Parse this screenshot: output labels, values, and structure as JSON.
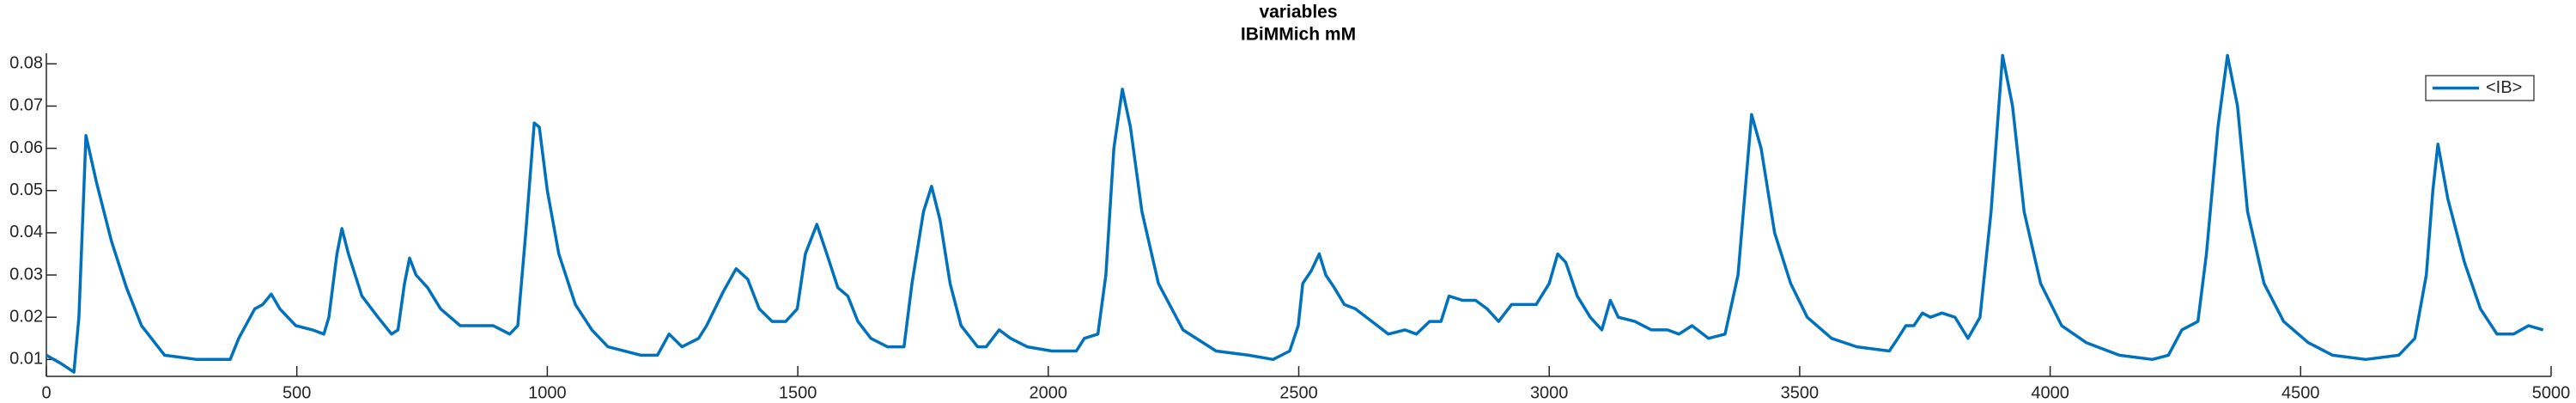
{
  "chart_data": {
    "type": "line",
    "title": "variables",
    "subtitle": "IBiMMich mM",
    "x": [
      0,
      30,
      55,
      65,
      79,
      100,
      130,
      160,
      190,
      236,
      300,
      367,
      384,
      416,
      432,
      449,
      466,
      498,
      531,
      554,
      564,
      580,
      590,
      603,
      630,
      662,
      689,
      702,
      715,
      725,
      738,
      761,
      787,
      826,
      892,
      925,
      941,
      957,
      974,
      984,
      1000,
      1023,
      1056,
      1089,
      1121,
      1187,
      1220,
      1243,
      1269,
      1302,
      1318,
      1351,
      1377,
      1400,
      1423,
      1449,
      1476,
      1499,
      1515,
      1538,
      1558,
      1580,
      1600,
      1620,
      1646,
      1679,
      1712,
      1728,
      1751,
      1767,
      1784,
      1804,
      1826,
      1859,
      1876,
      1902,
      1925,
      1958,
      2007,
      2056,
      2072,
      2099,
      2115,
      2131,
      2148,
      2164,
      2187,
      2220,
      2269,
      2335,
      2400,
      2449,
      2482,
      2499,
      2508,
      2525,
      2541,
      2554,
      2571,
      2591,
      2613,
      2646,
      2679,
      2712,
      2735,
      2761,
      2784,
      2800,
      2827,
      2853,
      2876,
      2899,
      2925,
      2974,
      3000,
      3017,
      3033,
      3056,
      3082,
      3105,
      3122,
      3138,
      3171,
      3204,
      3236,
      3259,
      3285,
      3318,
      3351,
      3377,
      3404,
      3423,
      3450,
      3482,
      3515,
      3564,
      3614,
      3679,
      3696,
      3712,
      3728,
      3745,
      3761,
      3784,
      3810,
      3836,
      3860,
      3882,
      3905,
      3925,
      3948,
      3981,
      4023,
      4072,
      4138,
      4204,
      4236,
      4263,
      4295,
      4312,
      4335,
      4354,
      4374,
      4394,
      4427,
      4466,
      4515,
      4564,
      4630,
      4696,
      4728,
      4751,
      4764,
      4774,
      4794,
      4827,
      4859,
      4892,
      4925,
      4955,
      4984
    ],
    "series": [
      {
        "name": "<IB>",
        "color": "#0072bd",
        "values": [
          0.011,
          0.009,
          0.007,
          0.02,
          0.063,
          0.052,
          0.038,
          0.027,
          0.018,
          0.011,
          0.01,
          0.01,
          0.015,
          0.022,
          0.023,
          0.0255,
          0.022,
          0.018,
          0.017,
          0.016,
          0.02,
          0.035,
          0.041,
          0.035,
          0.025,
          0.02,
          0.016,
          0.017,
          0.028,
          0.034,
          0.03,
          0.027,
          0.022,
          0.018,
          0.018,
          0.016,
          0.018,
          0.04,
          0.066,
          0.065,
          0.05,
          0.035,
          0.023,
          0.017,
          0.013,
          0.011,
          0.011,
          0.016,
          0.013,
          0.015,
          0.018,
          0.026,
          0.0315,
          0.029,
          0.022,
          0.019,
          0.019,
          0.022,
          0.035,
          0.042,
          0.035,
          0.027,
          0.025,
          0.019,
          0.015,
          0.013,
          0.013,
          0.028,
          0.045,
          0.051,
          0.043,
          0.028,
          0.018,
          0.013,
          0.013,
          0.017,
          0.015,
          0.013,
          0.012,
          0.012,
          0.015,
          0.016,
          0.03,
          0.06,
          0.074,
          0.065,
          0.045,
          0.028,
          0.017,
          0.012,
          0.011,
          0.01,
          0.012,
          0.018,
          0.028,
          0.031,
          0.035,
          0.03,
          0.027,
          0.023,
          0.022,
          0.019,
          0.016,
          0.017,
          0.016,
          0.019,
          0.019,
          0.025,
          0.024,
          0.024,
          0.022,
          0.019,
          0.023,
          0.023,
          0.028,
          0.035,
          0.033,
          0.025,
          0.02,
          0.017,
          0.024,
          0.02,
          0.019,
          0.017,
          0.017,
          0.016,
          0.018,
          0.015,
          0.016,
          0.03,
          0.068,
          0.06,
          0.04,
          0.028,
          0.02,
          0.015,
          0.013,
          0.012,
          0.015,
          0.018,
          0.018,
          0.021,
          0.02,
          0.021,
          0.02,
          0.015,
          0.02,
          0.045,
          0.082,
          0.07,
          0.045,
          0.028,
          0.018,
          0.014,
          0.011,
          0.01,
          0.011,
          0.017,
          0.019,
          0.035,
          0.065,
          0.082,
          0.07,
          0.045,
          0.028,
          0.019,
          0.014,
          0.011,
          0.01,
          0.011,
          0.015,
          0.03,
          0.05,
          0.061,
          0.048,
          0.033,
          0.022,
          0.016,
          0.016,
          0.018,
          0.017
        ]
      }
    ],
    "xlim": [
      0,
      5000
    ],
    "xticks": [
      0,
      500,
      1000,
      1500,
      2000,
      2500,
      3000,
      3500,
      4000,
      4500,
      5000
    ],
    "ylim": [
      0.006,
      0.0825
    ],
    "yticks": [
      0.01,
      0.02,
      0.03,
      0.04,
      0.05,
      0.06,
      0.07,
      0.08
    ],
    "legend": "upper right"
  }
}
